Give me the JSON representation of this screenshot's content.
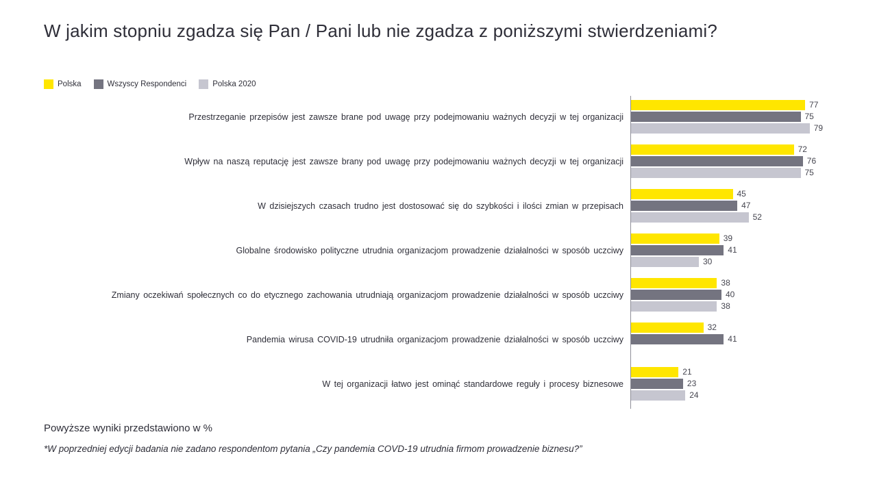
{
  "title": "W jakim stopniu zgadza się Pan / Pani lub nie zgadza z poniższymi stwierdzeniami?",
  "chart_data": {
    "type": "bar",
    "orientation": "horizontal",
    "legend_position": "top-left",
    "grid": false,
    "xlim": [
      0,
      100
    ],
    "value_labels": true,
    "categories": [
      "Przestrzeganie przepisów jest zawsze brane pod uwagę przy podejmowaniu ważnych decyzji w tej organizacji",
      "Wpływ na naszą reputację jest zawsze brany pod uwagę przy podejmowaniu ważnych decyzji w tej organizacji",
      "W dzisiejszych czasach trudno jest dostosować się do szybkości i ilości zmian w przepisach",
      "Globalne środowisko polityczne utrudnia organizacjom prowadzenie działalności w sposób uczciwy",
      "Zmiany oczekiwań społecznych co do etycznego zachowania utrudniają organizacjom prowadzenie działalności w sposób uczciwy",
      "Pandemia wirusa COVID-19 utrudniła organizacjom prowadzenie działalności w sposób uczciwy",
      "W tej organizacji łatwo jest ominąć standardowe reguły i procesy biznesowe"
    ],
    "series": [
      {
        "name": "Polska",
        "color": "#FFE600",
        "values": [
          77,
          72,
          45,
          39,
          38,
          32,
          21
        ]
      },
      {
        "name": "Wszyscy Respondenci",
        "color": "#747480",
        "values": [
          75,
          76,
          47,
          41,
          40,
          41,
          23
        ]
      },
      {
        "name": "Polska 2020",
        "color": "#C6C6D0",
        "values": [
          79,
          75,
          52,
          30,
          38,
          null,
          24
        ]
      }
    ]
  },
  "footer": {
    "note": "Powyższe wyniki przedstawiono w %",
    "footnote": "*W poprzedniej edycji badania nie zadano respondentom pytania „Czy pandemia COVD-19 utrudnia firmom prowadzenie biznesu?”"
  }
}
